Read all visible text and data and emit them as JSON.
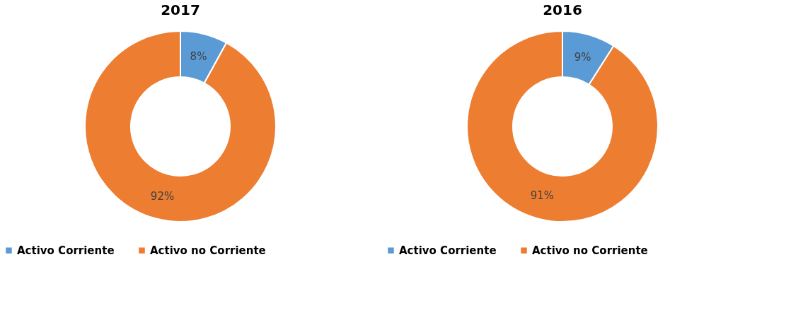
{
  "chart_data": [
    {
      "type": "donut",
      "title": "2017",
      "categories": [
        "Activo Corriente",
        "Activo no Corriente"
      ],
      "values": [
        8,
        92
      ],
      "colors": [
        "#5b9bd5",
        "#ed7d31"
      ],
      "data_labels": true,
      "value_labels": [
        "8%",
        "92%"
      ],
      "legend": "bottom"
    },
    {
      "type": "donut",
      "title": "2016",
      "categories": [
        "Activo Corriente",
        "Activo no Corriente"
      ],
      "values": [
        9,
        91
      ],
      "colors": [
        "#5b9bd5",
        "#ed7d31"
      ],
      "data_labels": true,
      "value_labels": [
        "9%",
        "91%"
      ],
      "legend": "bottom"
    }
  ]
}
